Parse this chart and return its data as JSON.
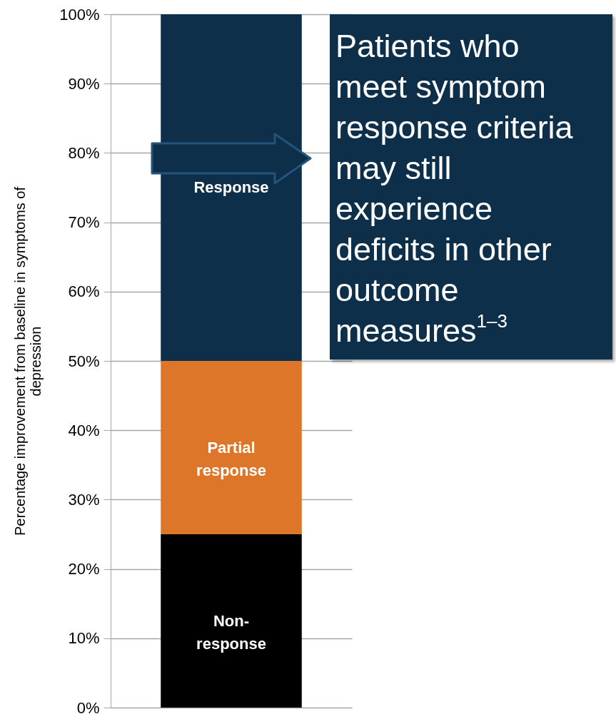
{
  "chart_data": {
    "type": "bar",
    "stacked": true,
    "categories": [
      null
    ],
    "series": [
      {
        "name": "Non-response",
        "color": "#000000",
        "values": [
          25
        ]
      },
      {
        "name": "Partial response",
        "color": "#dd7629",
        "values": [
          25
        ]
      },
      {
        "name": "Response",
        "color": "#0d2f4a",
        "values": [
          50
        ]
      }
    ],
    "ylabel": "Percentage improvement from baseline in symptoms of depression",
    "ylim": [
      0,
      100
    ],
    "yticks": [
      {
        "value": 0,
        "label": "0%"
      },
      {
        "value": 10,
        "label": "10%"
      },
      {
        "value": 20,
        "label": "20%"
      },
      {
        "value": 30,
        "label": "30%"
      },
      {
        "value": 40,
        "label": "40%"
      },
      {
        "value": 50,
        "label": "50%"
      },
      {
        "value": 60,
        "label": "60%"
      },
      {
        "value": 70,
        "label": "70%"
      },
      {
        "value": 80,
        "label": "80%"
      },
      {
        "value": 90,
        "label": "90%"
      },
      {
        "value": 100,
        "label": "100%"
      }
    ],
    "grid": "y",
    "tick_labels": "y",
    "annotations": [
      "Patients who meet symptom response criteria may still experience deficits in other outcome measures$^{1–3}$"
    ]
  }
}
